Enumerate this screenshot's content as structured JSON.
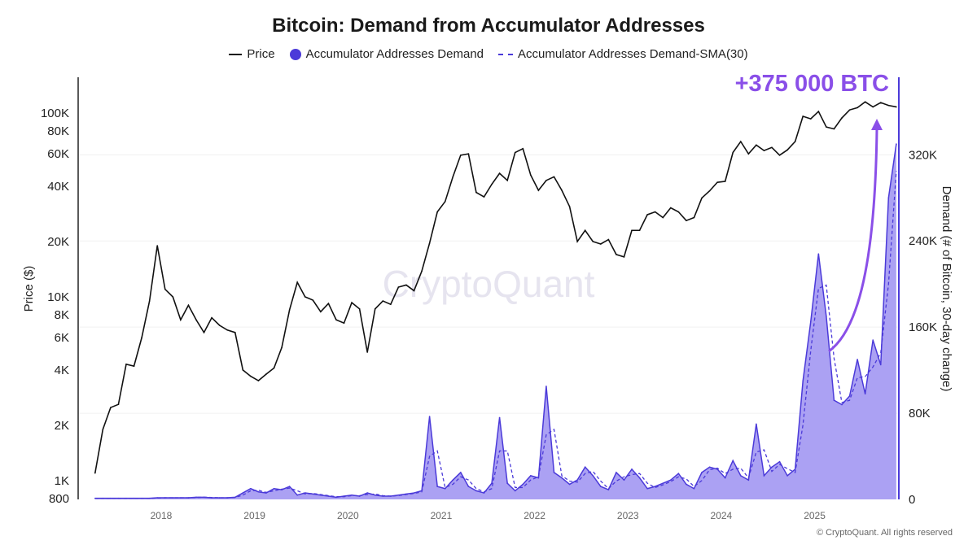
{
  "chart_data": {
    "type": "line",
    "title": "Bitcoin: Demand from Accumulator Addresses",
    "legend": {
      "placement": "top",
      "entries": [
        "Price",
        "Accumulator Addresses Demand",
        "Accumulator Addresses Demand-SMA(30)"
      ]
    },
    "y_left": {
      "label": "Price ($)",
      "scale": "log",
      "range": [
        800,
        160000
      ],
      "ticks": [
        "100K",
        "80K",
        "60K",
        "40K",
        "20K",
        "10K",
        "8K",
        "6K",
        "4K",
        "2K",
        "1K",
        "800"
      ],
      "tick_values": [
        100000,
        80000,
        60000,
        40000,
        20000,
        10000,
        8000,
        6000,
        4000,
        2000,
        1000,
        800
      ]
    },
    "y_right": {
      "label": "Demand (# of Bitcoin, 30-day change)",
      "scale": "linear",
      "range": [
        0,
        392000
      ],
      "ticks": [
        "0",
        "80K",
        "160K",
        "240K",
        "320K"
      ],
      "tick_values": [
        0,
        80000,
        160000,
        240000,
        320000
      ]
    },
    "x_axis": {
      "ticks": [
        "2018",
        "2019",
        "2020",
        "2021",
        "2022",
        "2023",
        "2024",
        "2025"
      ],
      "range": [
        "2017-04",
        "2025-11"
      ]
    },
    "grid": true,
    "annotation": {
      "text": "+375 000 BTC",
      "arrow": true
    },
    "watermark": "CryptoQuant",
    "colors": {
      "price": "#111111",
      "demand_line": "#4b3ad9",
      "demand_fill": "#a79cf2",
      "sma": "#4b3ad9",
      "annotation": "#8a4fe8"
    },
    "x": [
      "2017-04",
      "2017-05",
      "2017-06",
      "2017-07",
      "2017-08",
      "2017-09",
      "2017-10",
      "2017-11",
      "2017-12",
      "2018-01",
      "2018-02",
      "2018-03",
      "2018-04",
      "2018-05",
      "2018-06",
      "2018-07",
      "2018-08",
      "2018-09",
      "2018-10",
      "2018-11",
      "2018-12",
      "2019-01",
      "2019-02",
      "2019-03",
      "2019-04",
      "2019-05",
      "2019-06",
      "2019-07",
      "2019-08",
      "2019-09",
      "2019-10",
      "2019-11",
      "2019-12",
      "2020-01",
      "2020-02",
      "2020-03",
      "2020-04",
      "2020-05",
      "2020-06",
      "2020-07",
      "2020-08",
      "2020-09",
      "2020-10",
      "2020-11",
      "2020-12",
      "2021-01",
      "2021-02",
      "2021-03",
      "2021-04",
      "2021-05",
      "2021-06",
      "2021-07",
      "2021-08",
      "2021-09",
      "2021-10",
      "2021-11",
      "2021-12",
      "2022-01",
      "2022-02",
      "2022-03",
      "2022-04",
      "2022-05",
      "2022-06",
      "2022-07",
      "2022-08",
      "2022-09",
      "2022-10",
      "2022-11",
      "2022-12",
      "2023-01",
      "2023-02",
      "2023-03",
      "2023-04",
      "2023-05",
      "2023-06",
      "2023-07",
      "2023-08",
      "2023-09",
      "2023-10",
      "2023-11",
      "2023-12",
      "2024-01",
      "2024-02",
      "2024-03",
      "2024-04",
      "2024-05",
      "2024-06",
      "2024-07",
      "2024-08",
      "2024-09",
      "2024-10",
      "2024-11",
      "2024-12",
      "2025-01",
      "2025-02",
      "2025-03",
      "2025-04",
      "2025-05",
      "2025-06",
      "2025-07",
      "2025-08",
      "2025-09",
      "2025-10",
      "2025-11"
    ],
    "series": [
      {
        "name": "Price",
        "axis": "left",
        "values": [
          1100,
          1900,
          2500,
          2600,
          4300,
          4200,
          6000,
          9500,
          19000,
          11000,
          10000,
          7500,
          9000,
          7500,
          6400,
          7700,
          7000,
          6600,
          6400,
          4000,
          3700,
          3500,
          3800,
          4100,
          5300,
          8500,
          12000,
          10000,
          9600,
          8300,
          9200,
          7500,
          7200,
          9300,
          8600,
          5000,
          8600,
          9500,
          9100,
          11300,
          11600,
          10800,
          13800,
          19600,
          29000,
          33000,
          45000,
          59000,
          60000,
          37000,
          35000,
          41000,
          47000,
          43000,
          61000,
          64000,
          46000,
          38000,
          43000,
          45000,
          38000,
          31000,
          20000,
          23000,
          20000,
          19400,
          20500,
          17000,
          16500,
          23000,
          23000,
          28000,
          29000,
          27000,
          30500,
          29000,
          26000,
          27000,
          34500,
          37700,
          42000,
          42500,
          61000,
          70000,
          60000,
          67000,
          62500,
          65000,
          59000,
          63000,
          70000,
          96000,
          93000,
          102000,
          84000,
          82000,
          94000,
          104000,
          107000,
          115000,
          108000,
          114000,
          110000,
          108000
        ]
      },
      {
        "name": "Accumulator Addresses Demand",
        "axis": "right",
        "values": [
          1000,
          1000,
          1000,
          1000,
          1000,
          1000,
          1000,
          1000,
          1500,
          1500,
          1500,
          1500,
          1500,
          2000,
          2000,
          1500,
          1500,
          1500,
          2000,
          6000,
          10000,
          7000,
          6000,
          10000,
          9000,
          12000,
          4000,
          6000,
          5000,
          4000,
          3000,
          2000,
          3000,
          4000,
          3000,
          6000,
          4000,
          3000,
          3000,
          4000,
          5000,
          6000,
          8000,
          77000,
          12000,
          10000,
          18000,
          25000,
          12000,
          8000,
          6000,
          15000,
          76000,
          15000,
          8000,
          14000,
          22000,
          20000,
          105000,
          25000,
          20000,
          14000,
          18000,
          30000,
          22000,
          12000,
          9000,
          25000,
          18000,
          28000,
          20000,
          10000,
          12000,
          15000,
          18000,
          24000,
          14000,
          10000,
          25000,
          30000,
          28000,
          20000,
          36000,
          22000,
          18000,
          70000,
          22000,
          30000,
          35000,
          22000,
          28000,
          110000,
          165000,
          228000,
          170000,
          92000,
          88000,
          96000,
          130000,
          98000,
          148000,
          125000,
          280000,
          330000
        ]
      },
      {
        "name": "Accumulator Addresses Demand-SMA(30)",
        "axis": "right",
        "values": [
          1000,
          1000,
          1000,
          1000,
          1000,
          1000,
          1000,
          1000,
          1200,
          1500,
          1500,
          1500,
          1500,
          1800,
          2000,
          1800,
          1500,
          1500,
          1800,
          4000,
          8000,
          8500,
          6500,
          8000,
          9500,
          10500,
          8000,
          5000,
          5500,
          4500,
          3500,
          2500,
          2500,
          3500,
          3500,
          4500,
          5000,
          3500,
          3000,
          3500,
          4500,
          5500,
          7000,
          40000,
          45000,
          11000,
          14000,
          21000,
          18000,
          10000,
          7000,
          10000,
          45000,
          45000,
          11000,
          11000,
          18000,
          21000,
          60000,
          65000,
          22000,
          17000,
          16000,
          24000,
          26000,
          17000,
          10000,
          17000,
          21000,
          23000,
          24000,
          15000,
          11000,
          13500,
          16500,
          21000,
          19000,
          12000,
          17500,
          27500,
          29000,
          24000,
          28000,
          29000,
          20000,
          44000,
          46000,
          26000,
          32500,
          28500,
          25000,
          69000,
          138000,
          196000,
          199000,
          131000,
          90000,
          92000,
          113000,
          114000,
          123000,
          136000,
          200000,
          305000
        ]
      }
    ]
  },
  "copyright": "© CryptoQuant. All rights reserved"
}
